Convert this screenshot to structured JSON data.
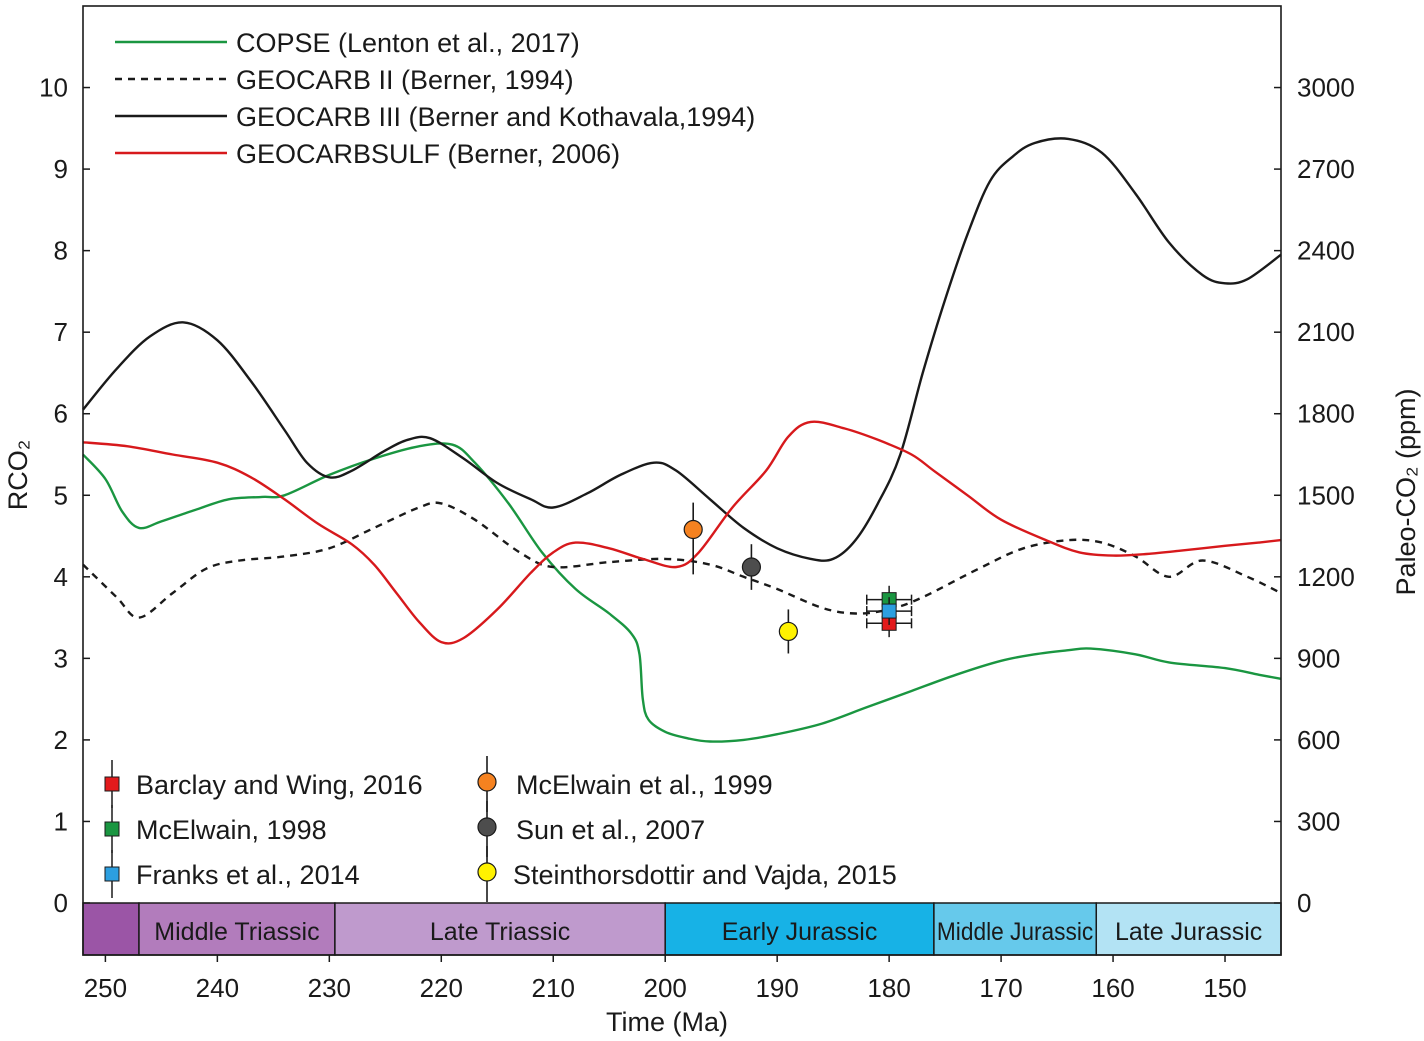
{
  "chart_data": {
    "type": "line",
    "xlabel": "Time (Ma)",
    "ylabel_left": "RCO₂",
    "ylabel_right": "Paleo-CO₂ (ppm)",
    "xlim": [
      252,
      145
    ],
    "ylim_left": [
      0,
      11
    ],
    "ylim_right": [
      0,
      3300
    ],
    "x_ticks": [
      250,
      240,
      230,
      220,
      210,
      200,
      190,
      180,
      170,
      160,
      150
    ],
    "y_ticks_left": [
      0,
      1,
      2,
      3,
      4,
      5,
      6,
      7,
      8,
      9,
      10
    ],
    "y_ticks_right": [
      0,
      300,
      600,
      900,
      1200,
      1500,
      1800,
      2100,
      2400,
      2700,
      3000
    ],
    "grid": false,
    "legend_lines_position": "top-left",
    "legend_points_position": "bottom-left",
    "series": [
      {
        "name": "COPSE (Lenton et al., 2017)",
        "color": "#1a9641",
        "dash": "solid",
        "points": [
          [
            252,
            5.5
          ],
          [
            250,
            5.2
          ],
          [
            248.5,
            4.8
          ],
          [
            247,
            4.6
          ],
          [
            245,
            4.68
          ],
          [
            242,
            4.82
          ],
          [
            239,
            4.95
          ],
          [
            236,
            4.98
          ],
          [
            234,
            5.0
          ],
          [
            230,
            5.25
          ],
          [
            226,
            5.45
          ],
          [
            222,
            5.6
          ],
          [
            219,
            5.62
          ],
          [
            217,
            5.4
          ],
          [
            214,
            4.9
          ],
          [
            211,
            4.3
          ],
          [
            208,
            3.85
          ],
          [
            205,
            3.55
          ],
          [
            203,
            3.3
          ],
          [
            202.3,
            3.05
          ],
          [
            202,
            2.5
          ],
          [
            201.5,
            2.25
          ],
          [
            200,
            2.1
          ],
          [
            198,
            2.02
          ],
          [
            196,
            1.98
          ],
          [
            193,
            2.0
          ],
          [
            190,
            2.07
          ],
          [
            186,
            2.2
          ],
          [
            182,
            2.4
          ],
          [
            178,
            2.6
          ],
          [
            174,
            2.8
          ],
          [
            170,
            2.97
          ],
          [
            167,
            3.05
          ],
          [
            164,
            3.1
          ],
          [
            162,
            3.12
          ],
          [
            158,
            3.05
          ],
          [
            155,
            2.95
          ],
          [
            150,
            2.88
          ],
          [
            147,
            2.8
          ],
          [
            145,
            2.75
          ]
        ]
      },
      {
        "name": "GEOCARB II (Berner, 1994)",
        "color": "#1a1a1a",
        "dash": "dashed",
        "points": [
          [
            252,
            4.15
          ],
          [
            249,
            3.75
          ],
          [
            247,
            3.5
          ],
          [
            244,
            3.8
          ],
          [
            241,
            4.1
          ],
          [
            238,
            4.2
          ],
          [
            234,
            4.25
          ],
          [
            230,
            4.35
          ],
          [
            226,
            4.6
          ],
          [
            222,
            4.85
          ],
          [
            220,
            4.9
          ],
          [
            217,
            4.7
          ],
          [
            213,
            4.3
          ],
          [
            210,
            4.12
          ],
          [
            205,
            4.18
          ],
          [
            200,
            4.22
          ],
          [
            196,
            4.15
          ],
          [
            193,
            4.0
          ],
          [
            190,
            3.85
          ],
          [
            186,
            3.62
          ],
          [
            183,
            3.55
          ],
          [
            180,
            3.6
          ],
          [
            177,
            3.75
          ],
          [
            172,
            4.1
          ],
          [
            168,
            4.35
          ],
          [
            164,
            4.45
          ],
          [
            161,
            4.42
          ],
          [
            158,
            4.25
          ],
          [
            155,
            4.0
          ],
          [
            152,
            4.2
          ],
          [
            148,
            4.0
          ],
          [
            145,
            3.8
          ]
        ]
      },
      {
        "name": "GEOCARB III  (Berner and Kothavala,1994)",
        "color": "#1a1a1a",
        "dash": "solid",
        "points": [
          [
            252,
            6.05
          ],
          [
            249,
            6.55
          ],
          [
            246,
            6.95
          ],
          [
            243,
            7.12
          ],
          [
            240,
            6.9
          ],
          [
            237,
            6.4
          ],
          [
            234,
            5.8
          ],
          [
            232,
            5.4
          ],
          [
            230,
            5.22
          ],
          [
            228,
            5.3
          ],
          [
            225,
            5.55
          ],
          [
            223,
            5.68
          ],
          [
            221,
            5.7
          ],
          [
            218,
            5.45
          ],
          [
            215,
            5.15
          ],
          [
            212,
            4.95
          ],
          [
            210,
            4.85
          ],
          [
            207,
            5.02
          ],
          [
            204,
            5.25
          ],
          [
            201,
            5.4
          ],
          [
            199,
            5.3
          ],
          [
            196,
            4.95
          ],
          [
            193,
            4.6
          ],
          [
            190,
            4.35
          ],
          [
            187,
            4.22
          ],
          [
            185,
            4.22
          ],
          [
            183,
            4.45
          ],
          [
            181,
            4.9
          ],
          [
            179,
            5.5
          ],
          [
            177,
            6.5
          ],
          [
            175,
            7.4
          ],
          [
            173,
            8.2
          ],
          [
            171,
            8.85
          ],
          [
            169,
            9.15
          ],
          [
            167,
            9.32
          ],
          [
            164,
            9.37
          ],
          [
            161,
            9.2
          ],
          [
            158,
            8.7
          ],
          [
            155,
            8.1
          ],
          [
            152,
            7.7
          ],
          [
            150,
            7.6
          ],
          [
            148,
            7.65
          ],
          [
            145,
            7.95
          ]
        ]
      },
      {
        "name": "GEOCARBSULF (Berner, 2006)",
        "color": "#d7191c",
        "dash": "solid",
        "points": [
          [
            252,
            5.65
          ],
          [
            248,
            5.6
          ],
          [
            244,
            5.5
          ],
          [
            240,
            5.4
          ],
          [
            237,
            5.22
          ],
          [
            234,
            4.95
          ],
          [
            231,
            4.65
          ],
          [
            228,
            4.4
          ],
          [
            226,
            4.15
          ],
          [
            224,
            3.8
          ],
          [
            222,
            3.45
          ],
          [
            220,
            3.2
          ],
          [
            218,
            3.25
          ],
          [
            215,
            3.6
          ],
          [
            212,
            4.05
          ],
          [
            210,
            4.3
          ],
          [
            208,
            4.42
          ],
          [
            205,
            4.35
          ],
          [
            202,
            4.22
          ],
          [
            199,
            4.12
          ],
          [
            197,
            4.3
          ],
          [
            194,
            4.85
          ],
          [
            191,
            5.3
          ],
          [
            189,
            5.72
          ],
          [
            187,
            5.9
          ],
          [
            184,
            5.82
          ],
          [
            181,
            5.68
          ],
          [
            178,
            5.5
          ],
          [
            176,
            5.3
          ],
          [
            173,
            5.0
          ],
          [
            170,
            4.7
          ],
          [
            166,
            4.45
          ],
          [
            163,
            4.3
          ],
          [
            160,
            4.26
          ],
          [
            157,
            4.28
          ],
          [
            154,
            4.32
          ],
          [
            150,
            4.38
          ],
          [
            147,
            4.42
          ],
          [
            145,
            4.45
          ]
        ]
      }
    ],
    "point_series": [
      {
        "name": "Barclay and Wing, 2016",
        "marker": "square",
        "color": "#e31a1c",
        "x": 180,
        "y": 3.43,
        "yerr": 0.17,
        "xerr": 2
      },
      {
        "name": "McElwain, 1998",
        "marker": "square",
        "color": "#1a9641",
        "x": 180,
        "y": 3.72,
        "yerr": 0.17,
        "xerr": 2
      },
      {
        "name": "Franks et al., 2014",
        "marker": "square",
        "color": "#2c9fe0",
        "x": 180,
        "y": 3.58,
        "yerr": 0.17,
        "xerr": 2
      },
      {
        "name": "McElwain et al., 1999",
        "marker": "circle",
        "color": "#f58220",
        "x": 197.5,
        "y": 4.58,
        "yerr_low": 0.55,
        "yerr_high": 0.33
      },
      {
        "name": "Sun et al., 2007",
        "marker": "circle",
        "color": "#4d4d4d",
        "x": 192.3,
        "y": 4.12,
        "yerr_low": 0.28,
        "yerr_high": 0.28
      },
      {
        "name": "Steinthorsdottir and Vajda, 2015",
        "marker": "circle",
        "color": "#fff200",
        "x": 189,
        "y": 3.33,
        "yerr_low": 0.27,
        "yerr_high": 0.27
      }
    ],
    "periods": [
      {
        "label": "",
        "start": 252,
        "end": 247,
        "color": "#9b55a6"
      },
      {
        "label": "Middle Triassic",
        "start": 247,
        "end": 229.5,
        "color": "#b27cbc"
      },
      {
        "label": "Late Triassic",
        "start": 229.5,
        "end": 200,
        "color": "#bf9acd"
      },
      {
        "label": "Early Jurassic",
        "start": 200,
        "end": 176,
        "color": "#17b2e6"
      },
      {
        "label": "Middle Jurassic",
        "start": 176,
        "end": 161.5,
        "color": "#66c9eb"
      },
      {
        "label": "Late Jurassic",
        "start": 161.5,
        "end": 145,
        "color": "#b3e3f4"
      }
    ]
  }
}
